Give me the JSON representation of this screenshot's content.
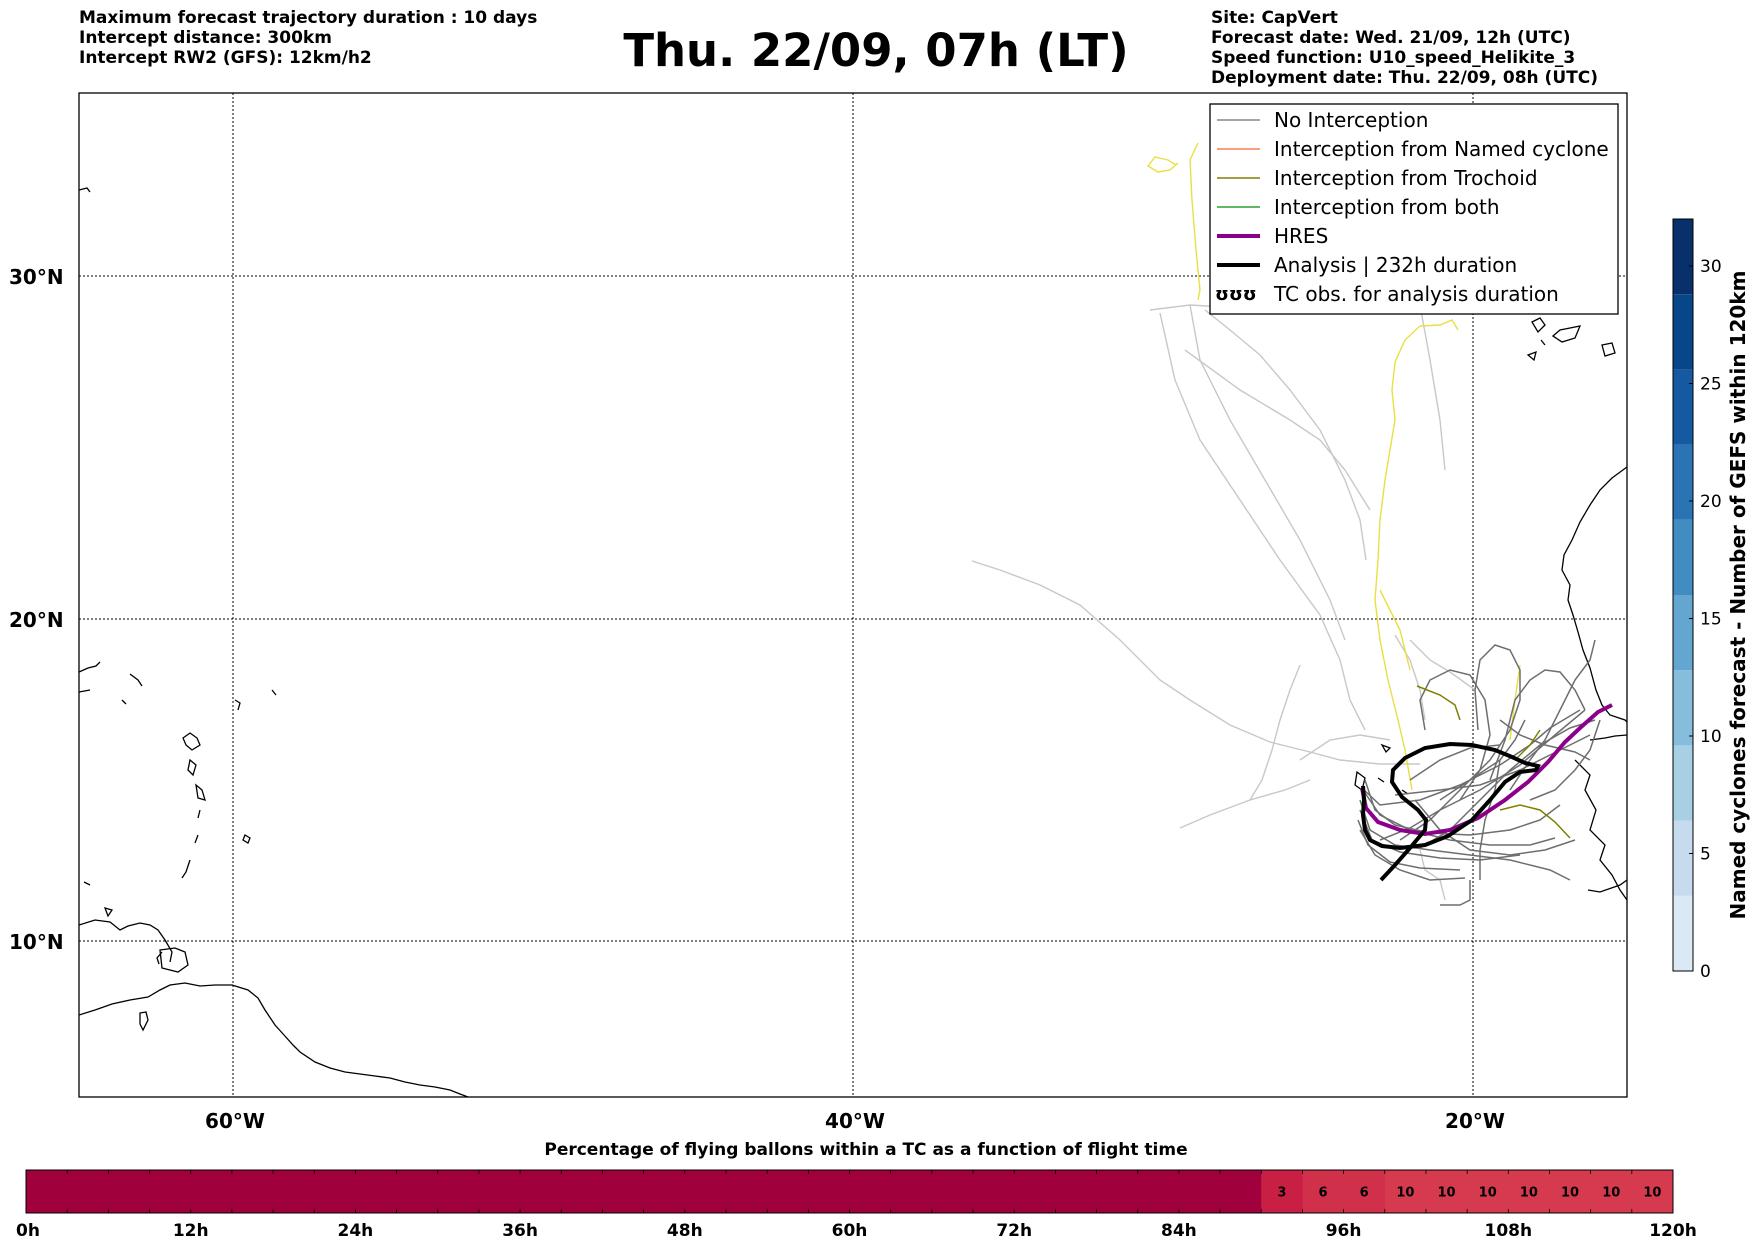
{
  "header_left": [
    "Maximum forecast trajectory duration : 10 days",
    "Intercept distance: 300km",
    "Intercept RW2 (GFS):  12km/h2"
  ],
  "title": "Thu. 22/09, 07h (LT)",
  "header_right": [
    "Site: CapVert",
    "Forecast date: Wed. 21/09, 12h (UTC)",
    "Speed function: U10_speed_Helikite_3",
    "Deployment date: Thu. 22/09, 08h (UTC)"
  ],
  "map": {
    "lat_labels": [
      "30°N",
      "20°N",
      "10°N"
    ],
    "lon_labels": [
      "60°W",
      "40°W",
      "20°W"
    ]
  },
  "legend": [
    {
      "label": "No Interception",
      "color": "#888888",
      "width": 1.5
    },
    {
      "label": "Interception from Named cyclone",
      "color": "#ff7f50",
      "width": 1.5
    },
    {
      "label": "Interception from Trochoid",
      "color": "#808000",
      "width": 1.5
    },
    {
      "label": "Interception from both",
      "color": "#2ca02c",
      "width": 1.5
    },
    {
      "label": "HRES",
      "color": "#8b008b",
      "width": 4
    },
    {
      "label": "Analysis | 232h duration",
      "color": "#000000",
      "width": 4
    },
    {
      "label": "TC obs. for analysis duration",
      "symbol": "ʊʊʊ"
    }
  ],
  "colorbar": {
    "label": "Named cyclones forecast - Number of GEFS within 120km",
    "ticks": [
      "0",
      "5",
      "10",
      "15",
      "20",
      "25",
      "30"
    ],
    "colors": [
      "#dbe8f6",
      "#c7dbef",
      "#a9cfe5",
      "#86bcdc",
      "#63a7d1",
      "#418dc2",
      "#2a74b4",
      "#155aa0",
      "#08468a",
      "#08306b"
    ]
  },
  "timebar": {
    "title": "Percentage of flying ballons within a TC as a function of flight time",
    "tick_labels": [
      "0h",
      "12h",
      "24h",
      "36h",
      "48h",
      "60h",
      "72h",
      "84h",
      "96h",
      "108h",
      "120h"
    ],
    "cell_values": [
      "3",
      "6",
      "6",
      "10",
      "10",
      "10",
      "10",
      "10",
      "10",
      "10"
    ]
  },
  "chart_data": {
    "type": "heatmap",
    "title": "Percentage of flying ballons within a TC as a function of flight time",
    "x": [
      0,
      3,
      6,
      9,
      12,
      15,
      18,
      21,
      24,
      27,
      30,
      33,
      36,
      39,
      42,
      45,
      48,
      51,
      54,
      57,
      60,
      63,
      66,
      69,
      72,
      75,
      78,
      81,
      84,
      87,
      90,
      93,
      96,
      99,
      102,
      105,
      108,
      111,
      114,
      117
    ],
    "values": [
      0,
      0,
      0,
      0,
      0,
      0,
      0,
      0,
      0,
      0,
      0,
      0,
      0,
      0,
      0,
      0,
      0,
      0,
      0,
      0,
      0,
      0,
      0,
      0,
      0,
      0,
      0,
      0,
      0,
      0,
      3,
      6,
      6,
      10,
      10,
      10,
      10,
      10,
      10,
      10
    ],
    "xlabel": "",
    "xlim": [
      0,
      120
    ],
    "tick_labels": [
      "0h",
      "12h",
      "24h",
      "36h",
      "48h",
      "60h",
      "72h",
      "84h",
      "96h",
      "108h",
      "120h"
    ],
    "colors": {
      "zero": "#a0003c",
      "low": "#c91f45",
      "mid": "#d0304a",
      "high": "#d53a4e"
    }
  }
}
